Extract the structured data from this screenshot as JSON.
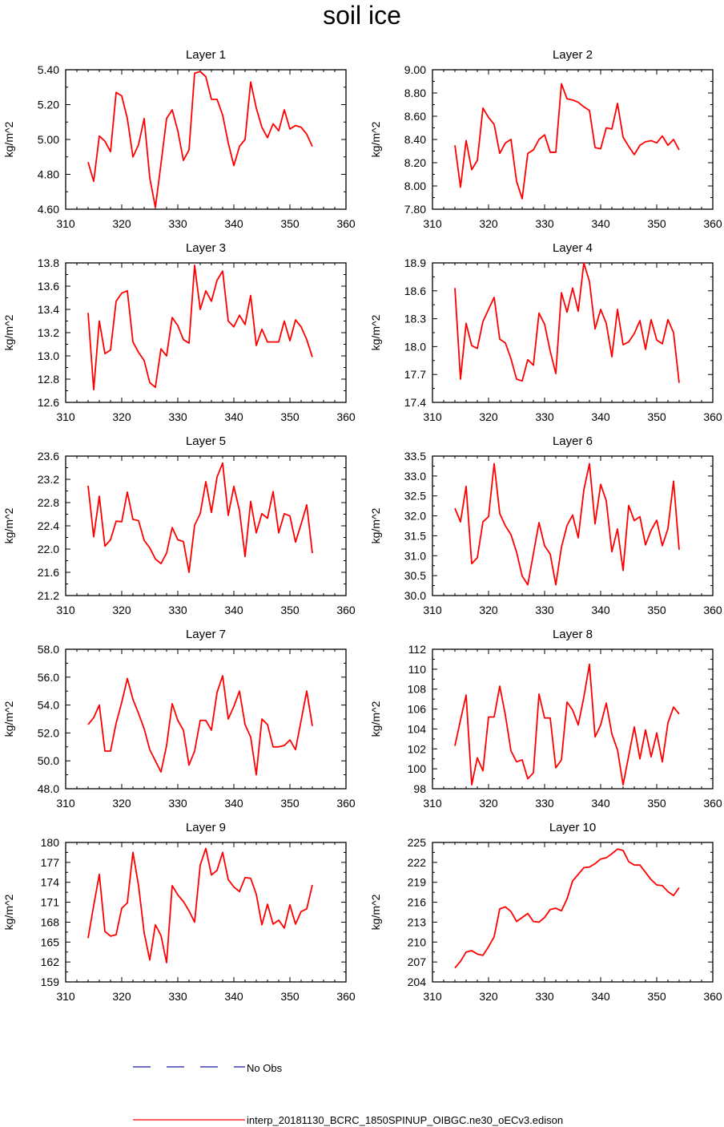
{
  "title": "soil ice",
  "legend": {
    "no_obs_label": "No Obs",
    "model_label": "interp_20181130_BCRC_1850SPINUP_OIBGC.ne30_oECv3.edison"
  },
  "colors": {
    "model": "#ff0000",
    "obs": "#1a1aa6",
    "axis": "#000000"
  },
  "chart_data": [
    {
      "type": "line",
      "title": "Layer 1",
      "ylabel": "kg/m^2",
      "xlim": [
        310,
        360
      ],
      "ylim": [
        4.6,
        5.4
      ],
      "xticks": [
        "310",
        "320",
        "330",
        "340",
        "350",
        "360"
      ],
      "yticks": [
        "4.60",
        "4.80",
        "5.00",
        "5.20",
        "5.40"
      ],
      "x": [
        314,
        315,
        316,
        317,
        318,
        319,
        320,
        321,
        322,
        323,
        324,
        325,
        326,
        327,
        328,
        329,
        330,
        331,
        332,
        333,
        334,
        335,
        336,
        337,
        338,
        339,
        340,
        341,
        342,
        343,
        344,
        345,
        346,
        347,
        348,
        349,
        350,
        351,
        352,
        353,
        354
      ],
      "values": [
        4.87,
        4.76,
        5.02,
        4.99,
        4.93,
        5.27,
        5.25,
        5.12,
        4.9,
        4.97,
        5.12,
        4.78,
        4.61,
        4.86,
        5.12,
        5.17,
        5.05,
        4.88,
        4.94,
        5.38,
        5.39,
        5.36,
        5.23,
        5.23,
        5.14,
        4.98,
        4.85,
        4.96,
        5.0,
        5.33,
        5.18,
        5.07,
        5.01,
        5.09,
        5.05,
        5.17,
        5.06,
        5.08,
        5.07,
        5.03,
        4.96
      ]
    },
    {
      "type": "line",
      "title": "Layer 2",
      "ylabel": "kg/m^2",
      "xlim": [
        310,
        360
      ],
      "ylim": [
        7.8,
        9.0
      ],
      "xticks": [
        "310",
        "320",
        "330",
        "340",
        "350",
        "360"
      ],
      "yticks": [
        "7.80",
        "8.00",
        "8.20",
        "8.40",
        "8.60",
        "8.80",
        "9.00"
      ],
      "x": [
        314,
        315,
        316,
        317,
        318,
        319,
        320,
        321,
        322,
        323,
        324,
        325,
        326,
        327,
        328,
        329,
        330,
        331,
        332,
        333,
        334,
        335,
        336,
        337,
        338,
        339,
        340,
        341,
        342,
        343,
        344,
        345,
        346,
        347,
        348,
        349,
        350,
        351,
        352,
        353,
        354
      ],
      "values": [
        8.35,
        7.99,
        8.39,
        8.14,
        8.22,
        8.67,
        8.59,
        8.53,
        8.28,
        8.37,
        8.4,
        8.04,
        7.89,
        8.28,
        8.31,
        8.4,
        8.44,
        8.29,
        8.29,
        8.88,
        8.75,
        8.74,
        8.72,
        8.68,
        8.65,
        8.33,
        8.32,
        8.5,
        8.49,
        8.71,
        8.42,
        8.34,
        8.27,
        8.35,
        8.38,
        8.39,
        8.37,
        8.43,
        8.35,
        8.4,
        8.31
      ]
    },
    {
      "type": "line",
      "title": "Layer 3",
      "ylabel": "kg/m^2",
      "xlim": [
        310,
        360
      ],
      "ylim": [
        12.6,
        13.8
      ],
      "xticks": [
        "310",
        "320",
        "330",
        "340",
        "350",
        "360"
      ],
      "yticks": [
        "12.6",
        "12.8",
        "13.0",
        "13.2",
        "13.4",
        "13.6",
        "13.8"
      ],
      "x": [
        314,
        315,
        316,
        317,
        318,
        319,
        320,
        321,
        322,
        323,
        324,
        325,
        326,
        327,
        328,
        329,
        330,
        331,
        332,
        333,
        334,
        335,
        336,
        337,
        338,
        339,
        340,
        341,
        342,
        343,
        344,
        345,
        346,
        347,
        348,
        349,
        350,
        351,
        352,
        353,
        354
      ],
      "values": [
        13.37,
        12.71,
        13.3,
        13.02,
        13.05,
        13.47,
        13.54,
        13.56,
        13.12,
        13.03,
        12.96,
        12.77,
        12.73,
        13.06,
        13.0,
        13.33,
        13.26,
        13.14,
        13.11,
        13.78,
        13.4,
        13.56,
        13.47,
        13.65,
        13.73,
        13.3,
        13.25,
        13.35,
        13.27,
        13.52,
        13.09,
        13.23,
        13.12,
        13.12,
        13.12,
        13.3,
        13.13,
        13.31,
        13.25,
        13.14,
        12.99
      ]
    },
    {
      "type": "line",
      "title": "Layer 4",
      "ylabel": "kg/m^2",
      "xlim": [
        310,
        360
      ],
      "ylim": [
        17.4,
        18.9
      ],
      "xticks": [
        "310",
        "320",
        "330",
        "340",
        "350",
        "360"
      ],
      "yticks": [
        "17.4",
        "17.7",
        "18.0",
        "18.3",
        "18.6",
        "18.9"
      ],
      "x": [
        314,
        315,
        316,
        317,
        318,
        319,
        320,
        321,
        322,
        323,
        324,
        325,
        326,
        327,
        328,
        329,
        330,
        331,
        332,
        333,
        334,
        335,
        336,
        337,
        338,
        339,
        340,
        341,
        342,
        343,
        344,
        345,
        346,
        347,
        348,
        349,
        350,
        351,
        352,
        353,
        354
      ],
      "values": [
        18.63,
        17.65,
        18.25,
        18.01,
        17.98,
        18.27,
        18.4,
        18.53,
        18.08,
        18.04,
        17.87,
        17.65,
        17.63,
        17.86,
        17.8,
        18.36,
        18.24,
        17.95,
        17.71,
        18.58,
        18.37,
        18.63,
        18.38,
        18.9,
        18.7,
        18.19,
        18.4,
        18.25,
        17.89,
        18.4,
        18.02,
        18.05,
        18.14,
        18.28,
        17.97,
        18.29,
        18.07,
        18.03,
        18.29,
        18.15,
        17.61
      ]
    },
    {
      "type": "line",
      "title": "Layer 5",
      "ylabel": "kg/m^2",
      "xlim": [
        310,
        360
      ],
      "ylim": [
        21.2,
        23.6
      ],
      "xticks": [
        "310",
        "320",
        "330",
        "340",
        "350",
        "360"
      ],
      "yticks": [
        "21.2",
        "21.6",
        "22.0",
        "22.4",
        "22.8",
        "23.2",
        "23.6"
      ],
      "x": [
        314,
        315,
        316,
        317,
        318,
        319,
        320,
        321,
        322,
        323,
        324,
        325,
        326,
        327,
        328,
        329,
        330,
        331,
        332,
        333,
        334,
        335,
        336,
        337,
        338,
        339,
        340,
        341,
        342,
        343,
        344,
        345,
        346,
        347,
        348,
        349,
        350,
        351,
        352,
        353,
        354
      ],
      "values": [
        23.09,
        22.21,
        22.91,
        22.05,
        22.16,
        22.48,
        22.47,
        22.98,
        22.51,
        22.49,
        22.15,
        22.02,
        21.83,
        21.75,
        21.93,
        22.37,
        22.16,
        22.13,
        21.6,
        22.41,
        22.61,
        23.16,
        22.63,
        23.24,
        23.48,
        22.58,
        23.08,
        22.66,
        21.87,
        22.82,
        22.28,
        22.61,
        22.53,
        22.99,
        22.28,
        22.61,
        22.57,
        22.12,
        22.43,
        22.76,
        21.93
      ]
    },
    {
      "type": "line",
      "title": "Layer 6",
      "ylabel": "kg/m^2",
      "xlim": [
        310,
        360
      ],
      "ylim": [
        30.0,
        33.5
      ],
      "xticks": [
        "310",
        "320",
        "330",
        "340",
        "350",
        "360"
      ],
      "yticks": [
        "30.0",
        "30.5",
        "31.0",
        "31.5",
        "32.0",
        "32.5",
        "33.0",
        "33.5"
      ],
      "x": [
        314,
        315,
        316,
        317,
        318,
        319,
        320,
        321,
        322,
        323,
        324,
        325,
        326,
        327,
        328,
        329,
        330,
        331,
        332,
        333,
        334,
        335,
        336,
        337,
        338,
        339,
        340,
        341,
        342,
        343,
        344,
        345,
        346,
        347,
        348,
        349,
        350,
        351,
        352,
        353,
        354
      ],
      "values": [
        32.19,
        31.85,
        32.74,
        30.8,
        30.95,
        31.85,
        31.98,
        33.31,
        32.06,
        31.75,
        31.53,
        31.09,
        30.49,
        30.27,
        31.05,
        31.83,
        31.25,
        31.04,
        30.27,
        31.21,
        31.76,
        32.02,
        31.45,
        32.65,
        33.31,
        31.8,
        32.79,
        32.38,
        31.1,
        31.67,
        30.63,
        32.26,
        31.88,
        31.98,
        31.27,
        31.64,
        31.89,
        31.25,
        31.68,
        32.87,
        31.15
      ]
    },
    {
      "type": "line",
      "title": "Layer 7",
      "ylabel": "kg/m^2",
      "xlim": [
        310,
        360
      ],
      "ylim": [
        48.0,
        58.0
      ],
      "xticks": [
        "310",
        "320",
        "330",
        "340",
        "350",
        "360"
      ],
      "yticks": [
        "48.0",
        "50.0",
        "52.0",
        "54.0",
        "56.0",
        "58.0"
      ],
      "x": [
        314,
        315,
        316,
        317,
        318,
        319,
        320,
        321,
        322,
        323,
        324,
        325,
        326,
        327,
        328,
        329,
        330,
        331,
        332,
        333,
        334,
        335,
        336,
        337,
        338,
        339,
        340,
        341,
        342,
        343,
        344,
        345,
        346,
        347,
        348,
        349,
        350,
        351,
        352,
        353,
        354
      ],
      "values": [
        52.6,
        53.1,
        54.0,
        50.7,
        50.7,
        52.7,
        54.2,
        55.9,
        54.4,
        53.4,
        52.3,
        50.8,
        50.0,
        49.2,
        51.1,
        54.1,
        52.9,
        52.2,
        49.7,
        50.7,
        52.9,
        52.9,
        52.2,
        54.9,
        56.1,
        53.0,
        53.9,
        55.0,
        52.6,
        51.7,
        49.0,
        53.0,
        52.6,
        51.0,
        51.0,
        51.1,
        51.5,
        50.8,
        52.9,
        55.0,
        52.5
      ]
    },
    {
      "type": "line",
      "title": "Layer 8",
      "ylabel": "kg/m^2",
      "xlim": [
        310,
        360
      ],
      "ylim": [
        98,
        112
      ],
      "xticks": [
        "310",
        "320",
        "330",
        "340",
        "350",
        "360"
      ],
      "yticks": [
        "98",
        "100",
        "102",
        "104",
        "106",
        "108",
        "110",
        "112"
      ],
      "x": [
        314,
        315,
        316,
        317,
        318,
        319,
        320,
        321,
        322,
        323,
        324,
        325,
        326,
        327,
        328,
        329,
        330,
        331,
        332,
        333,
        334,
        335,
        336,
        337,
        338,
        339,
        340,
        341,
        342,
        343,
        344,
        345,
        346,
        347,
        348,
        349,
        350,
        351,
        352,
        353,
        354
      ],
      "values": [
        102.3,
        104.9,
        107.4,
        98.4,
        101.1,
        99.8,
        105.2,
        105.2,
        108.3,
        105.4,
        101.8,
        100.7,
        100.9,
        99.0,
        99.6,
        107.5,
        105.1,
        105.1,
        100.1,
        100.9,
        106.7,
        105.9,
        104.4,
        107.2,
        110.5,
        103.2,
        104.4,
        106.6,
        103.5,
        101.9,
        98.4,
        101.3,
        104.2,
        101.0,
        103.9,
        101.2,
        103.6,
        100.7,
        104.6,
        106.2,
        105.5
      ]
    },
    {
      "type": "line",
      "title": "Layer 9",
      "ylabel": "kg/m^2",
      "xlim": [
        310,
        360
      ],
      "ylim": [
        159,
        180
      ],
      "xticks": [
        "310",
        "320",
        "330",
        "340",
        "350",
        "360"
      ],
      "yticks": [
        "159",
        "162",
        "165",
        "168",
        "171",
        "174",
        "177",
        "180"
      ],
      "x": [
        314,
        315,
        316,
        317,
        318,
        319,
        320,
        321,
        322,
        323,
        324,
        325,
        326,
        327,
        328,
        329,
        330,
        331,
        332,
        333,
        334,
        335,
        336,
        337,
        338,
        339,
        340,
        341,
        342,
        343,
        344,
        345,
        346,
        347,
        348,
        349,
        350,
        351,
        352,
        353,
        354
      ],
      "values": [
        165.6,
        170.5,
        175.2,
        166.6,
        165.9,
        166.1,
        170.1,
        170.9,
        178.5,
        173.5,
        166.4,
        162.3,
        167.6,
        166.0,
        161.9,
        173.5,
        172.1,
        171.1,
        169.7,
        168.0,
        176.6,
        179.1,
        175.1,
        175.8,
        178.5,
        174.4,
        173.3,
        172.6,
        174.7,
        174.6,
        172.2,
        167.6,
        170.7,
        167.7,
        168.3,
        167.1,
        170.6,
        167.7,
        169.6,
        170.0,
        173.6
      ]
    },
    {
      "type": "line",
      "title": "Layer 10",
      "ylabel": "kg/m^2",
      "xlim": [
        310,
        360
      ],
      "ylim": [
        204,
        225
      ],
      "xticks": [
        "310",
        "320",
        "330",
        "340",
        "350",
        "360"
      ],
      "yticks": [
        "204",
        "207",
        "210",
        "213",
        "216",
        "219",
        "222",
        "225"
      ],
      "x": [
        314,
        315,
        316,
        317,
        318,
        319,
        320,
        321,
        322,
        323,
        324,
        325,
        326,
        327,
        328,
        329,
        330,
        331,
        332,
        333,
        334,
        335,
        336,
        337,
        338,
        339,
        340,
        341,
        342,
        343,
        344,
        345,
        346,
        347,
        348,
        349,
        350,
        351,
        352,
        353,
        354
      ],
      "values": [
        206.1,
        207.1,
        208.5,
        208.7,
        208.2,
        208.0,
        209.3,
        210.8,
        215.0,
        215.3,
        214.6,
        213.1,
        213.7,
        214.3,
        213.1,
        213.0,
        213.7,
        214.9,
        215.1,
        214.7,
        216.5,
        219.2,
        220.2,
        221.2,
        221.3,
        221.8,
        222.5,
        222.7,
        223.3,
        224.0,
        223.8,
        222.1,
        221.6,
        221.6,
        220.5,
        219.4,
        218.6,
        218.5,
        217.6,
        217.0,
        218.2
      ]
    }
  ]
}
